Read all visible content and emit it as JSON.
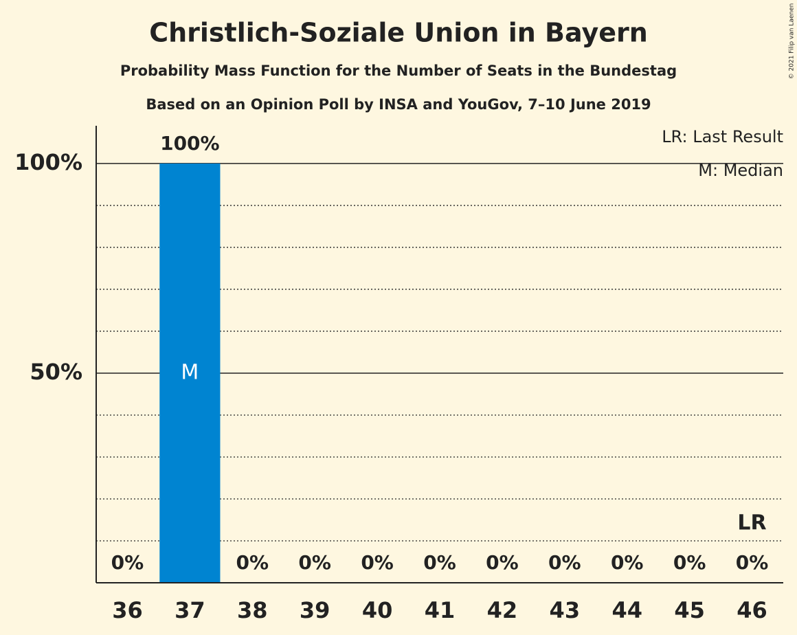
{
  "chart_data": {
    "type": "bar",
    "title": "Christlich-Soziale Union in Bayern",
    "subtitle": "Probability Mass Function for the Number of Seats in the Bundestag",
    "source": "Based on an Opinion Poll by INSA and YouGov, 7–10 June 2019",
    "copyright": "© 2021 Filip van Laenen",
    "categories": [
      36,
      37,
      38,
      39,
      40,
      41,
      42,
      43,
      44,
      45,
      46
    ],
    "values": [
      0,
      100,
      0,
      0,
      0,
      0,
      0,
      0,
      0,
      0,
      0
    ],
    "value_labels": [
      "0%",
      "100%",
      "0%",
      "0%",
      "0%",
      "0%",
      "0%",
      "0%",
      "0%",
      "0%",
      "0%"
    ],
    "color": "#0084d1",
    "ylim": [
      0,
      109
    ],
    "yticks": [
      {
        "value": 50,
        "label": "50%"
      },
      {
        "value": 100,
        "label": "100%"
      }
    ],
    "minor_yticks": [
      10,
      20,
      30,
      40,
      60,
      70,
      80,
      90
    ],
    "median": {
      "label": "M",
      "seats": 37
    },
    "last_result": {
      "label": "LR",
      "seats": 46
    },
    "legend": [
      "LR: Last Result",
      "M: Median"
    ]
  }
}
